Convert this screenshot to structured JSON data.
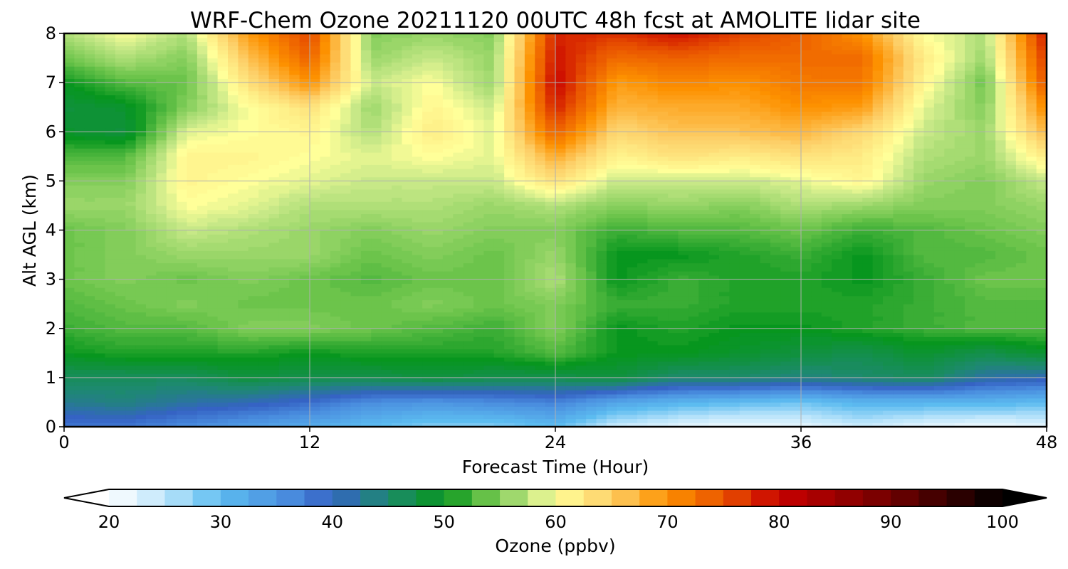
{
  "chart_data": {
    "type": "heatmap",
    "title": "WRF-Chem Ozone  20211120 00UTC 48h fcst at AMOLITE lidar site",
    "xlabel": "Forecast Time (Hour)",
    "ylabel": "Alt AGL (km)",
    "xlim": [
      0,
      48
    ],
    "ylim": [
      0,
      8
    ],
    "xticks": [
      0,
      12,
      24,
      36,
      48
    ],
    "yticks": [
      0,
      1,
      2,
      3,
      4,
      5,
      6,
      7,
      8
    ],
    "grid": true,
    "x": [
      0,
      3,
      6,
      9,
      12,
      15,
      18,
      21,
      24,
      27,
      30,
      33,
      36,
      39,
      42,
      45,
      48
    ],
    "y": [
      0,
      0.5,
      1,
      1.5,
      2,
      2.5,
      3,
      3.5,
      4,
      4.5,
      5,
      5.5,
      6,
      6.5,
      7,
      7.5,
      8
    ],
    "z": [
      [
        38,
        38,
        36,
        34,
        32,
        30,
        28,
        28,
        30,
        24,
        22,
        21,
        22,
        24,
        22,
        21,
        22
      ],
      [
        43,
        44,
        42,
        41,
        39,
        36,
        35,
        36,
        37,
        33,
        31,
        30,
        29,
        31,
        31,
        31,
        30
      ],
      [
        46,
        46,
        46,
        48,
        47,
        47,
        48,
        47,
        47,
        48,
        45,
        45,
        44,
        45,
        46,
        42,
        41
      ],
      [
        50,
        51,
        51,
        51,
        50,
        51,
        51,
        51,
        53,
        50,
        50,
        49,
        48,
        47,
        49,
        47,
        49
      ],
      [
        52,
        53,
        53,
        55,
        55,
        54,
        53,
        52,
        55,
        50,
        51,
        50,
        50,
        51,
        52,
        53,
        53
      ],
      [
        53,
        54,
        55,
        54,
        54,
        54,
        55,
        54,
        55,
        52,
        52,
        51,
        51,
        51,
        52,
        53,
        53
      ],
      [
        54,
        55,
        54,
        55,
        54,
        53,
        54,
        54,
        57,
        50,
        52,
        51,
        51,
        50,
        52,
        54,
        54
      ],
      [
        54,
        55,
        56,
        56,
        56,
        54,
        55,
        54,
        56,
        50,
        50,
        51,
        52,
        50,
        53,
        53,
        54
      ],
      [
        54,
        55,
        58,
        57,
        56,
        55,
        56,
        55,
        55,
        52,
        53,
        53,
        54,
        52,
        53,
        54,
        55
      ],
      [
        56,
        56,
        60,
        59,
        57,
        57,
        57,
        56,
        57,
        55,
        56,
        55,
        57,
        56,
        55,
        55,
        56
      ],
      [
        55,
        55,
        61,
        60,
        59,
        58,
        58,
        58,
        63,
        58,
        58,
        58,
        59,
        61,
        56,
        55,
        58
      ],
      [
        53,
        53,
        61,
        61,
        60,
        59,
        60,
        59,
        68,
        61,
        63,
        62,
        63,
        62,
        57,
        56,
        62
      ],
      [
        49,
        48,
        59,
        60,
        61,
        57,
        62,
        59,
        74,
        64,
        66,
        66,
        67,
        64,
        58,
        56,
        67
      ],
      [
        48,
        49,
        55,
        60,
        63,
        56,
        61,
        58,
        78,
        67,
        68,
        68,
        70,
        69,
        59,
        55,
        71
      ],
      [
        50,
        53,
        54,
        63,
        70,
        58,
        60,
        56,
        80,
        69,
        71,
        70,
        72,
        72,
        61,
        54,
        75
      ],
      [
        54,
        57,
        55,
        66,
        74,
        56,
        58,
        56,
        79,
        73,
        74,
        73,
        73,
        73,
        62,
        56,
        77
      ],
      [
        57,
        60,
        57,
        69,
        76,
        55,
        56,
        55,
        78,
        77,
        79,
        76,
        74,
        70,
        60,
        57,
        79
      ]
    ],
    "colorbar": {
      "label": "Ozone  (ppbv)",
      "min": 20,
      "max": 100,
      "ticks": [
        20,
        30,
        40,
        50,
        60,
        70,
        80,
        90,
        100
      ],
      "extend": "both",
      "colors": [
        [
          20,
          "#ffffff"
        ],
        [
          25,
          "#bfe6fb"
        ],
        [
          30,
          "#5cbcf0"
        ],
        [
          36,
          "#4a8edf"
        ],
        [
          40,
          "#3563c4"
        ],
        [
          45,
          "#1d8a6e"
        ],
        [
          50,
          "#07961e"
        ],
        [
          54,
          "#6cc44b"
        ],
        [
          58,
          "#c7e887"
        ],
        [
          60,
          "#ffff99"
        ],
        [
          65,
          "#fdcf68"
        ],
        [
          70,
          "#fd9100"
        ],
        [
          75,
          "#e95400"
        ],
        [
          80,
          "#c80000"
        ],
        [
          90,
          "#700000"
        ],
        [
          100,
          "#000000"
        ]
      ]
    }
  }
}
